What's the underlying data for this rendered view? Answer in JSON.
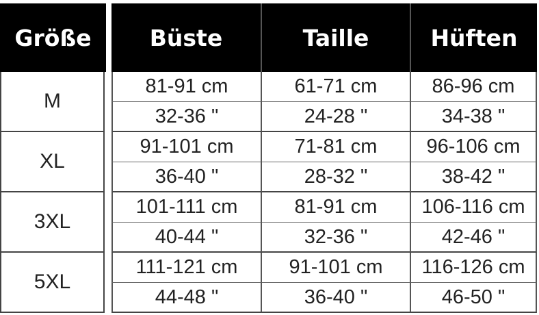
{
  "header": [
    "Größe",
    "Büste",
    "Taille",
    "Hüften"
  ],
  "rows": [
    {
      "size": "M",
      "cm": [
        "81-91 cm",
        "61-71 cm",
        "86-96 cm"
      ],
      "inch": [
        "32-36 \"",
        "24-28 \"",
        "34-38 \""
      ]
    },
    {
      "size": "XL",
      "cm": [
        "91-101 cm",
        "71-81 cm",
        "96-106 cm"
      ],
      "inch": [
        "36-40 \"",
        "28-32 \"",
        "38-42 \""
      ]
    },
    {
      "size": "3XL",
      "cm": [
        "101-111 cm",
        "81-91 cm",
        "106-116 cm"
      ],
      "inch": [
        "40-44 \"",
        "32-36 \"",
        "42-46 \""
      ]
    },
    {
      "size": "5XL",
      "cm": [
        "111-121 cm",
        "91-101 cm",
        "116-126 cm"
      ],
      "inch": [
        "44-48 \"",
        "36-40 \"",
        "46-50 \""
      ]
    }
  ]
}
